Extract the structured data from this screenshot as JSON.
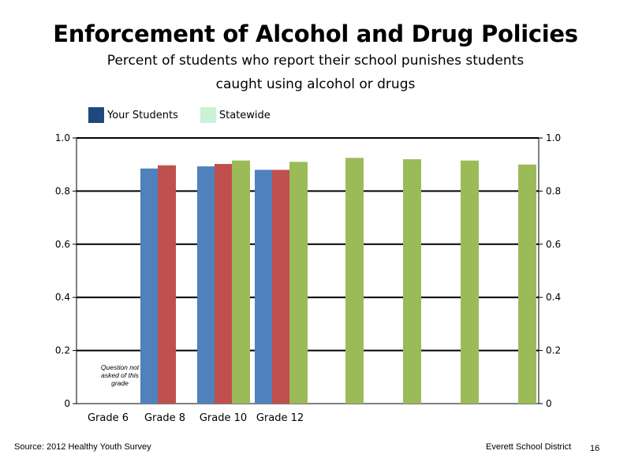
{
  "title": "Enforcement of Alcohol and Drug Policies",
  "subtitle_line1": "Percent of students who report their school punishes students",
  "subtitle_line2": "caught using alcohol or drugs",
  "legend": [
    {
      "label": "Your Students",
      "color": "#1f497d"
    },
    {
      "label": "Statewide",
      "color": "#c9f2d6"
    }
  ],
  "footer": {
    "source": "Source: 2012 Healthy Youth Survey",
    "district": "Everett School District",
    "page": "16"
  },
  "chart_data": {
    "type": "bar",
    "ylim": [
      0,
      1.0
    ],
    "y_ticks": [
      "0",
      "0.2",
      "0.4",
      "0.6",
      "0.8",
      "1.0"
    ],
    "y2_ticks": [
      "0",
      "0.2",
      "0.4",
      "0.6",
      "0.8",
      "1.0"
    ],
    "grid": true,
    "categories": [
      "Grade 6",
      "Grade 8",
      "Grade 10",
      "Grade 12"
    ],
    "grade_series": [
      {
        "color": "#4f81bd",
        "values": [
          null,
          0.885,
          0.893,
          0.88
        ]
      },
      {
        "color": "#c0504d",
        "values": [
          null,
          0.897,
          0.902,
          0.88
        ]
      },
      {
        "color": "#9bbb59",
        "values": [
          null,
          null,
          0.915,
          0.91
        ]
      }
    ],
    "extra_bars": {
      "color": "#9bbb59",
      "values": [
        0.925,
        0.92,
        0.915,
        0.9
      ]
    },
    "note": [
      "Question not",
      "asked of this",
      "grade"
    ]
  }
}
